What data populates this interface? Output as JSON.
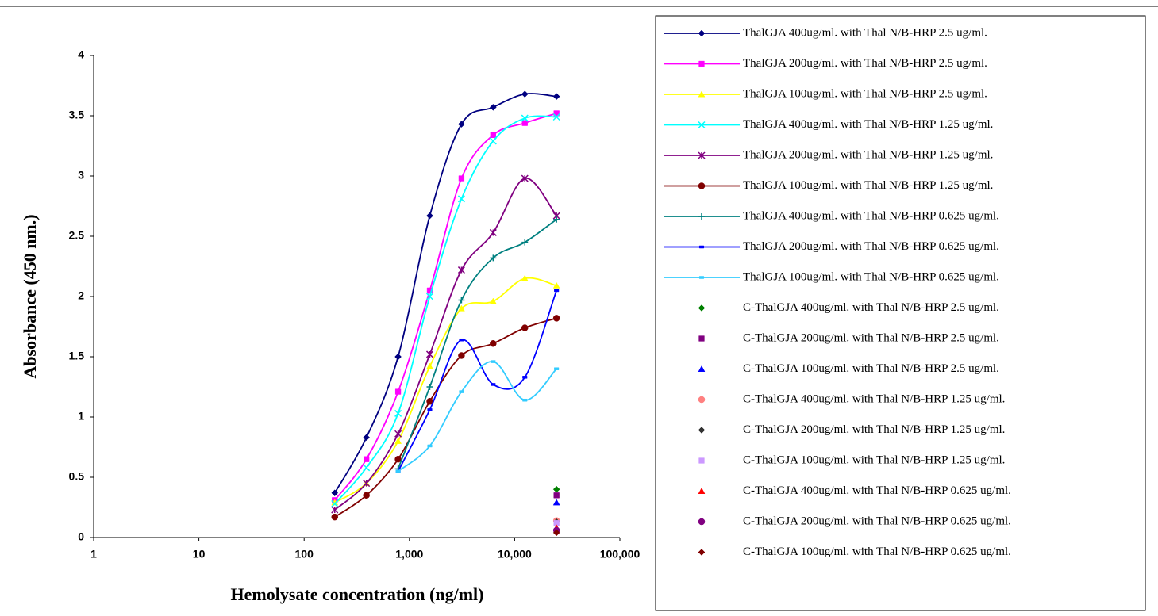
{
  "chart_data": {
    "type": "line",
    "xlabel": "Hemolysate concentration (ng/ml)",
    "ylabel": "Absorbance (450 nm.)",
    "xscale": "log",
    "xlim": [
      1,
      100000
    ],
    "xticks": [
      1,
      10,
      100,
      {
        "value": 1000,
        "label": "1,000"
      },
      {
        "value": 10000,
        "label": "10,000"
      },
      {
        "value": 100000,
        "label": "100,000"
      }
    ],
    "ylim": [
      0,
      4
    ],
    "yticks": [
      0,
      0.5,
      1,
      1.5,
      2,
      2.5,
      3,
      3.5,
      4
    ],
    "legend": "right",
    "x": [
      195.3,
      390.6,
      781.25,
      1562.5,
      3125,
      6250,
      12500,
      25000
    ],
    "series": [
      {
        "name": "ThalGJA 400ug/ml. with Thal N/B-HRP 2.5 ug/ml.",
        "color": "#000080",
        "marker": "diamond",
        "line": true,
        "values": [
          0.37,
          0.83,
          1.5,
          2.67,
          3.43,
          3.57,
          3.68,
          3.66
        ]
      },
      {
        "name": "ThalGJA 200ug/ml. with Thal N/B-HRP 2.5 ug/ml.",
        "color": "#ff00ff",
        "marker": "square",
        "line": true,
        "values": [
          0.31,
          0.65,
          1.21,
          2.05,
          2.98,
          3.34,
          3.44,
          3.52
        ]
      },
      {
        "name": "ThalGJA 100ug/ml. with Thal N/B-HRP 2.5 ug/ml.",
        "color": "#ffff00",
        "marker": "triangle",
        "line": true,
        "values": [
          0.29,
          0.45,
          0.8,
          1.42,
          1.9,
          1.96,
          2.15,
          2.09
        ]
      },
      {
        "name": "ThalGJA 400ug/ml. with Thal N/B-HRP 1.25 ug/ml.",
        "color": "#00ffff",
        "marker": "x",
        "line": true,
        "values": [
          0.28,
          0.58,
          1.03,
          2.0,
          2.81,
          3.29,
          3.48,
          3.49
        ]
      },
      {
        "name": "ThalGJA 200ug/ml. with Thal N/B-HRP 1.25 ug/ml.",
        "color": "#800080",
        "marker": "star",
        "line": true,
        "values": [
          0.23,
          0.45,
          0.86,
          1.52,
          2.22,
          2.53,
          2.98,
          2.67
        ]
      },
      {
        "name": "ThalGJA 100ug/ml. with Thal N/B-HRP 1.25 ug/ml.",
        "color": "#800000",
        "marker": "circle",
        "line": true,
        "values": [
          0.17,
          0.35,
          0.65,
          1.13,
          1.51,
          1.61,
          1.74,
          1.82
        ]
      },
      {
        "name": "ThalGJA 400ug/ml. with Thal N/B-HRP 0.625 ug/ml.",
        "color": "#008080",
        "marker": "plus",
        "line": true,
        "values": [
          null,
          null,
          0.57,
          1.25,
          1.97,
          2.32,
          2.45,
          2.64
        ]
      },
      {
        "name": "ThalGJA 200ug/ml. with Thal N/B-HRP 0.625 ug/ml.",
        "color": "#0000ff",
        "marker": "dash",
        "line": true,
        "values": [
          null,
          null,
          0.55,
          1.06,
          1.64,
          1.27,
          1.33,
          2.05
        ]
      },
      {
        "name": "ThalGJA 100ug/ml. with Thal N/B-HRP 0.625 ug/ml.",
        "color": "#33ccff",
        "marker": "dash",
        "line": true,
        "values": [
          null,
          null,
          0.55,
          0.76,
          1.21,
          1.46,
          1.14,
          1.4
        ]
      },
      {
        "name": "C-ThalGJA 400ug/ml. with Thal N/B-HRP 2.5 ug/ml.",
        "color": "#008000",
        "marker": "diamond",
        "line": false,
        "x": [
          25000
        ],
        "values": [
          0.4
        ]
      },
      {
        "name": "C-ThalGJA 200ug/ml. with Thal N/B-HRP 2.5 ug/ml.",
        "color": "#800080",
        "marker": "square",
        "line": false,
        "x": [
          25000
        ],
        "values": [
          0.35
        ]
      },
      {
        "name": "C-ThalGJA 100ug/ml. with Thal N/B-HRP 2.5 ug/ml.",
        "color": "#0000ff",
        "marker": "triangle",
        "line": false,
        "x": [
          25000
        ],
        "values": [
          0.29
        ]
      },
      {
        "name": "C-ThalGJA 400ug/ml. with Thal N/B-HRP 1.25 ug/ml.",
        "color": "#ff8080",
        "marker": "circle",
        "line": false,
        "x": [
          25000
        ],
        "values": [
          0.14
        ]
      },
      {
        "name": "C-ThalGJA 200ug/ml. with Thal N/B-HRP 1.25 ug/ml.",
        "color": "#333333",
        "marker": "diamond",
        "line": false,
        "x": [
          25000
        ],
        "values": [
          0.13
        ]
      },
      {
        "name": "C-ThalGJA 100ug/ml. with Thal N/B-HRP 1.25 ug/ml.",
        "color": "#cc99ff",
        "marker": "square",
        "line": false,
        "x": [
          25000
        ],
        "values": [
          0.12
        ]
      },
      {
        "name": "C-ThalGJA 400ug/ml. with Thal N/B-HRP 0.625 ug/ml.",
        "color": "#ff0000",
        "marker": "triangle",
        "line": false,
        "x": [
          25000
        ],
        "values": [
          0.08
        ]
      },
      {
        "name": "C-ThalGJA 200ug/ml. with Thal N/B-HRP 0.625 ug/ml.",
        "color": "#800080",
        "marker": "circle",
        "line": false,
        "x": [
          25000
        ],
        "values": [
          0.06
        ]
      },
      {
        "name": "C-ThalGJA 100ug/ml. with Thal N/B-HRP 0.625 ug/ml.",
        "color": "#800000",
        "marker": "diamond",
        "line": false,
        "x": [
          25000
        ],
        "values": [
          0.04
        ]
      }
    ]
  }
}
